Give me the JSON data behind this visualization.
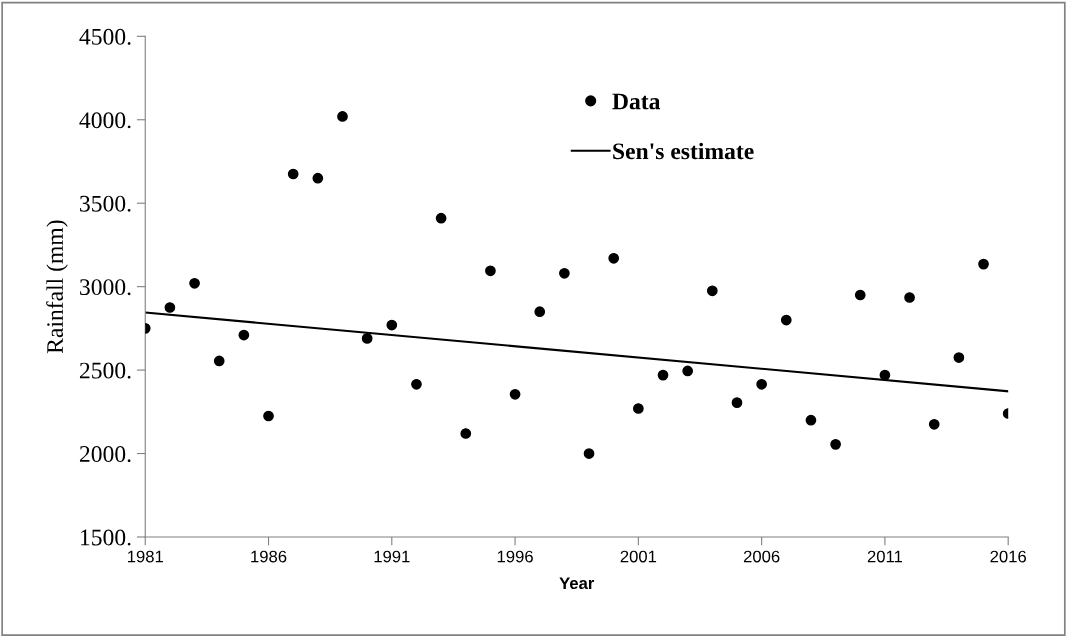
{
  "chart_data": {
    "type": "scatter",
    "xlabel": "Year",
    "ylabel": "Rainfall (mm)",
    "xlim": [
      1981,
      2016
    ],
    "xticks": [
      1981,
      1986,
      1991,
      1996,
      2001,
      2006,
      2011,
      2016
    ],
    "ylim": [
      1500,
      4500
    ],
    "yticks": [
      {
        "value": 1500,
        "label": "1500."
      },
      {
        "value": 2000,
        "label": "2000."
      },
      {
        "value": 2500,
        "label": "2500."
      },
      {
        "value": 3000,
        "label": "3000."
      },
      {
        "value": 3500,
        "label": "3500."
      },
      {
        "value": 4000,
        "label": "4000."
      },
      {
        "value": 4500,
        "label": "4500."
      }
    ],
    "grid": false,
    "legend": "top",
    "marker": "circle",
    "series": [
      {
        "name": "Data",
        "color": "#000000",
        "x": [
          1981,
          1982,
          1983,
          1984,
          1985,
          1986,
          1987,
          1988,
          1989,
          1990,
          1991,
          1992,
          1993,
          1994,
          1995,
          1996,
          1997,
          1998,
          1999,
          2000,
          2001,
          2002,
          2003,
          2004,
          2005,
          2006,
          2007,
          2008,
          2009,
          2010,
          2011,
          2012,
          2013,
          2014,
          2015,
          2016
        ],
        "values": [
          2750,
          2875,
          3020,
          2555,
          2710,
          2225,
          3675,
          3650,
          4020,
          2690,
          2770,
          2415,
          3410,
          2120,
          3095,
          2355,
          2850,
          3080,
          2000,
          3170,
          2270,
          2470,
          2495,
          2975,
          2305,
          2415,
          2800,
          2200,
          2055,
          2950,
          2470,
          2935,
          2175,
          2575,
          3135,
          2240
        ]
      },
      {
        "name": "Sen's estimate",
        "type": "line",
        "color": "#000000",
        "line_style": "solid",
        "marker": "none",
        "x": [
          1981,
          2016
        ],
        "values": [
          2845,
          2373
        ]
      }
    ]
  }
}
